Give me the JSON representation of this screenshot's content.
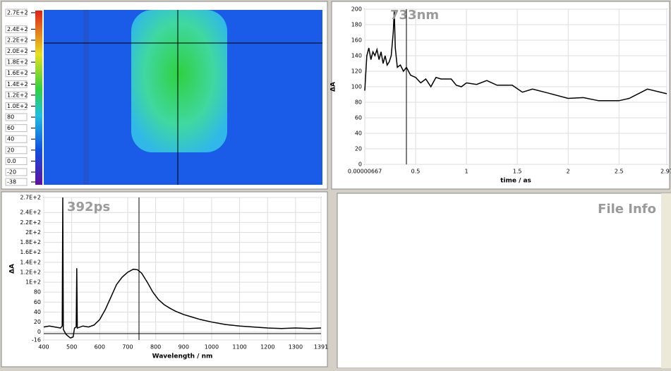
{
  "heatmap": {
    "colorbar_ticks": [
      {
        "value": 270,
        "label": "2.7E+2"
      },
      {
        "value": 240,
        "label": "2.4E+2"
      },
      {
        "value": 220,
        "label": "2.2E+2"
      },
      {
        "value": 200,
        "label": "2.0E+2"
      },
      {
        "value": 180,
        "label": "1.8E+2"
      },
      {
        "value": 160,
        "label": "1.6E+2"
      },
      {
        "value": 140,
        "label": "1.4E+2"
      },
      {
        "value": 120,
        "label": "1.2E+2"
      },
      {
        "value": 100,
        "label": "1.0E+2"
      },
      80,
      60,
      40,
      20,
      {
        "value": 0,
        "label": "0.0"
      },
      -20,
      -38
    ],
    "clim": [
      -38,
      270
    ]
  },
  "kinetics": {
    "type": "line",
    "title": "733nm",
    "xlabel": "time / as",
    "ylabel": "ΔA",
    "xlim": [
      6.67e-06,
      2.97
    ],
    "ylim": [
      0,
      200
    ],
    "xticks": [
      {
        "value": 6.67e-06,
        "label": "0.00000667"
      },
      0.5,
      1,
      1.5,
      2,
      2.5,
      2.97
    ],
    "yticks": [
      0,
      20,
      40,
      60,
      80,
      100,
      120,
      140,
      160,
      180,
      200
    ],
    "x": [
      6.67e-06,
      0.02,
      0.04,
      0.06,
      0.08,
      0.1,
      0.12,
      0.14,
      0.16,
      0.18,
      0.2,
      0.22,
      0.24,
      0.26,
      0.28,
      0.29,
      0.3,
      0.32,
      0.35,
      0.38,
      0.41,
      0.45,
      0.5,
      0.55,
      0.6,
      0.65,
      0.7,
      0.75,
      0.85,
      0.9,
      0.95,
      1.0,
      1.1,
      1.2,
      1.3,
      1.45,
      1.55,
      1.65,
      1.8,
      2.0,
      2.15,
      2.3,
      2.5,
      2.6,
      2.78,
      2.97
    ],
    "values": [
      95,
      140,
      150,
      135,
      145,
      140,
      148,
      135,
      145,
      130,
      140,
      128,
      132,
      140,
      170,
      198,
      150,
      125,
      128,
      120,
      125,
      115,
      112,
      105,
      110,
      100,
      112,
      110,
      110,
      102,
      100,
      105,
      103,
      108,
      102,
      102,
      93,
      97,
      92,
      85,
      86,
      82,
      82,
      85,
      97,
      91
    ]
  },
  "spectrum": {
    "type": "line",
    "title": "392ps",
    "xlabel": "Wavelength / nm",
    "ylabel": "ΔA",
    "xlim": [
      400,
      1391
    ],
    "ylim": [
      -16,
      270
    ],
    "xticks": [
      400,
      500,
      600,
      700,
      800,
      900,
      1000,
      1100,
      1200,
      1300,
      1391
    ],
    "yticks": [
      {
        "value": 270,
        "label": "2.7E+2"
      },
      {
        "value": 240,
        "label": "2.4E+2"
      },
      {
        "value": 220,
        "label": "2.2E+2"
      },
      {
        "value": 200,
        "label": "2E+2"
      },
      {
        "value": 180,
        "label": "1.8E+2"
      },
      {
        "value": 160,
        "label": "1.6E+2"
      },
      {
        "value": 140,
        "label": "1.4E+2"
      },
      {
        "value": 120,
        "label": "1.2E+2"
      },
      {
        "value": 100,
        "label": "1E+2"
      },
      80,
      60,
      40,
      20,
      0,
      -16
    ],
    "x": [
      400,
      420,
      440,
      460,
      466,
      468,
      470,
      480,
      495,
      505,
      510,
      516,
      518,
      520,
      540,
      560,
      580,
      600,
      620,
      640,
      660,
      680,
      700,
      720,
      735,
      750,
      770,
      790,
      810,
      830,
      850,
      870,
      900,
      930,
      960,
      1000,
      1050,
      1100,
      1150,
      1200,
      1250,
      1300,
      1350,
      1391
    ],
    "values": [
      10,
      12,
      10,
      8,
      12,
      270,
      5,
      -5,
      -12,
      -10,
      8,
      10,
      128,
      8,
      12,
      10,
      14,
      25,
      45,
      70,
      95,
      110,
      120,
      126,
      125,
      118,
      100,
      80,
      65,
      55,
      48,
      42,
      35,
      30,
      25,
      20,
      15,
      12,
      10,
      8,
      7,
      8,
      7,
      8
    ]
  },
  "file_info": {
    "title": "File Info"
  }
}
